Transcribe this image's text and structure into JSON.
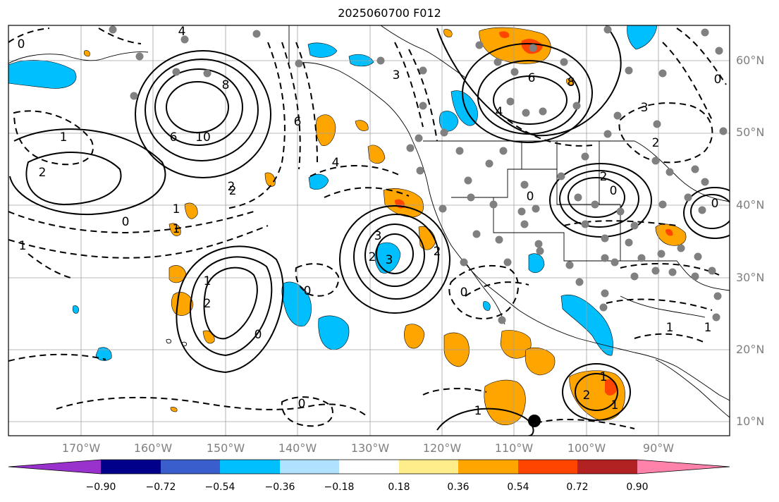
{
  "title": "2025060700 F012",
  "lat_labels": [
    "60°N",
    "50°N",
    "40°N",
    "30°N",
    "20°N",
    "10°N"
  ],
  "lon_labels": [
    "170°W",
    "160°W",
    "150°W",
    "140°W",
    "130°W",
    "120°W",
    "110°W",
    "100°W",
    "90°W"
  ],
  "colorbar": {
    "ticks": [
      "−0.90",
      "−0.72",
      "−0.54",
      "−0.36",
      "−0.18",
      "0.18",
      "0.36",
      "0.54",
      "0.72",
      "0.90"
    ],
    "colors": [
      "#9932cc",
      "#00008b",
      "#3a5fcd",
      "#00bfff",
      "#b0e2ff",
      "#ffffff",
      "#ffec8b",
      "#ffa500",
      "#ff4500",
      "#b22222",
      "#ff82ab"
    ]
  },
  "contour_labels": [
    "4",
    "0",
    "8",
    "10",
    "6",
    "2",
    "1",
    "2",
    "4",
    "6",
    "3",
    "6",
    "8",
    "4",
    "2",
    "3",
    "2",
    "0",
    "1",
    "3",
    "0",
    "2",
    "1",
    "0",
    "1",
    "0",
    "2",
    "1",
    "1",
    "0",
    "0",
    "1",
    "2",
    "1",
    "0",
    "1",
    "2",
    "3",
    "2",
    "0",
    "0",
    "1"
  ],
  "colors": {
    "positive_fill": "#ffa500",
    "strong_positive_fill": "#ff4500",
    "negative_fill": "#00bfff",
    "station_marker": "#808080",
    "gridline": "#a0a0a0",
    "label_color": "#7f7f7f"
  }
}
